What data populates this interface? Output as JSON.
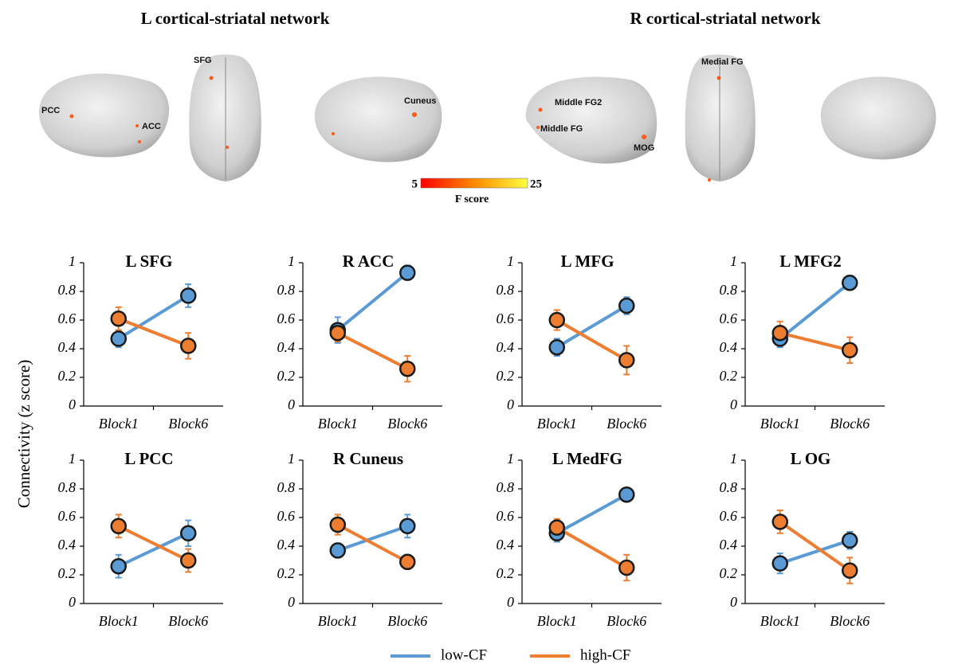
{
  "brain_panel": {
    "left_title": "L cortical-striatal network",
    "right_title": "R cortical-striatal network",
    "labels": [
      "PCC",
      "ACC",
      "SFG",
      "Cuneus",
      "Middle FG2",
      "Middle FG",
      "MOG",
      "Medial FG"
    ],
    "colorbar": {
      "min": 5,
      "max": 25,
      "label": "F score"
    }
  },
  "figure": {
    "y_label": "Connectivity (z score)"
  },
  "chart_data": [
    {
      "type": "line",
      "title": "L SFG",
      "categories": [
        "Block1",
        "Block6"
      ],
      "ylim": [
        0,
        1
      ],
      "yticks": [
        0,
        0.2,
        0.4,
        0.6,
        0.8,
        1
      ],
      "series": [
        {
          "name": "low-CF",
          "color": "#5b9bd5",
          "values": [
            0.47,
            0.77
          ],
          "errors": [
            0.06,
            0.08
          ]
        },
        {
          "name": "high-CF",
          "color": "#ed7d31",
          "values": [
            0.61,
            0.42
          ],
          "errors": [
            0.08,
            0.09
          ]
        }
      ]
    },
    {
      "type": "line",
      "title": "R ACC",
      "categories": [
        "Block1",
        "Block6"
      ],
      "ylim": [
        0,
        1
      ],
      "yticks": [
        0,
        0.2,
        0.4,
        0.6,
        0.8,
        1
      ],
      "series": [
        {
          "name": "low-CF",
          "color": "#5b9bd5",
          "values": [
            0.53,
            0.93
          ],
          "errors": [
            0.09,
            0.05
          ]
        },
        {
          "name": "high-CF",
          "color": "#ed7d31",
          "values": [
            0.51,
            0.26
          ],
          "errors": [
            0.06,
            0.09
          ]
        }
      ]
    },
    {
      "type": "line",
      "title": "L MFG",
      "categories": [
        "Block1",
        "Block6"
      ],
      "ylim": [
        0,
        1
      ],
      "yticks": [
        0,
        0.2,
        0.4,
        0.6,
        0.8,
        1
      ],
      "series": [
        {
          "name": "low-CF",
          "color": "#5b9bd5",
          "values": [
            0.41,
            0.7
          ],
          "errors": [
            0.06,
            0.06
          ]
        },
        {
          "name": "high-CF",
          "color": "#ed7d31",
          "values": [
            0.6,
            0.32
          ],
          "errors": [
            0.07,
            0.1
          ]
        }
      ]
    },
    {
      "type": "line",
      "title": "L MFG2",
      "categories": [
        "Block1",
        "Block6"
      ],
      "ylim": [
        0,
        1
      ],
      "yticks": [
        0,
        0.2,
        0.4,
        0.6,
        0.8,
        1
      ],
      "series": [
        {
          "name": "low-CF",
          "color": "#5b9bd5",
          "values": [
            0.47,
            0.86
          ],
          "errors": [
            0.06,
            0.05
          ]
        },
        {
          "name": "high-CF",
          "color": "#ed7d31",
          "values": [
            0.51,
            0.39
          ],
          "errors": [
            0.08,
            0.09
          ]
        }
      ]
    },
    {
      "type": "line",
      "title": "L PCC",
      "categories": [
        "Block1",
        "Block6"
      ],
      "ylim": [
        0,
        1
      ],
      "yticks": [
        0,
        0.2,
        0.4,
        0.6,
        0.8,
        1
      ],
      "series": [
        {
          "name": "low-CF",
          "color": "#5b9bd5",
          "values": [
            0.26,
            0.49
          ],
          "errors": [
            0.08,
            0.09
          ]
        },
        {
          "name": "high-CF",
          "color": "#ed7d31",
          "values": [
            0.54,
            0.3
          ],
          "errors": [
            0.08,
            0.08
          ]
        }
      ]
    },
    {
      "type": "line",
      "title": "R Cuneus",
      "categories": [
        "Block1",
        "Block6"
      ],
      "ylim": [
        0,
        1
      ],
      "yticks": [
        0,
        0.2,
        0.4,
        0.6,
        0.8,
        1
      ],
      "series": [
        {
          "name": "low-CF",
          "color": "#5b9bd5",
          "values": [
            0.37,
            0.54
          ],
          "errors": [
            0.05,
            0.08
          ]
        },
        {
          "name": "high-CF",
          "color": "#ed7d31",
          "values": [
            0.55,
            0.29
          ],
          "errors": [
            0.07,
            0.05
          ]
        }
      ]
    },
    {
      "type": "line",
      "title": "L MedFG",
      "categories": [
        "Block1",
        "Block6"
      ],
      "ylim": [
        0,
        1
      ],
      "yticks": [
        0,
        0.2,
        0.4,
        0.6,
        0.8,
        1
      ],
      "series": [
        {
          "name": "low-CF",
          "color": "#5b9bd5",
          "values": [
            0.49,
            0.76
          ],
          "errors": [
            0.06,
            0.04
          ]
        },
        {
          "name": "high-CF",
          "color": "#ed7d31",
          "values": [
            0.53,
            0.25
          ],
          "errors": [
            0.06,
            0.09
          ]
        }
      ]
    },
    {
      "type": "line",
      "title": "L OG",
      "categories": [
        "Block1",
        "Block6"
      ],
      "ylim": [
        0,
        1
      ],
      "yticks": [
        0,
        0.2,
        0.4,
        0.6,
        0.8,
        1
      ],
      "series": [
        {
          "name": "low-CF",
          "color": "#5b9bd5",
          "values": [
            0.28,
            0.44
          ],
          "errors": [
            0.07,
            0.06
          ]
        },
        {
          "name": "high-CF",
          "color": "#ed7d31",
          "values": [
            0.57,
            0.23
          ],
          "errors": [
            0.08,
            0.09
          ]
        }
      ]
    }
  ]
}
